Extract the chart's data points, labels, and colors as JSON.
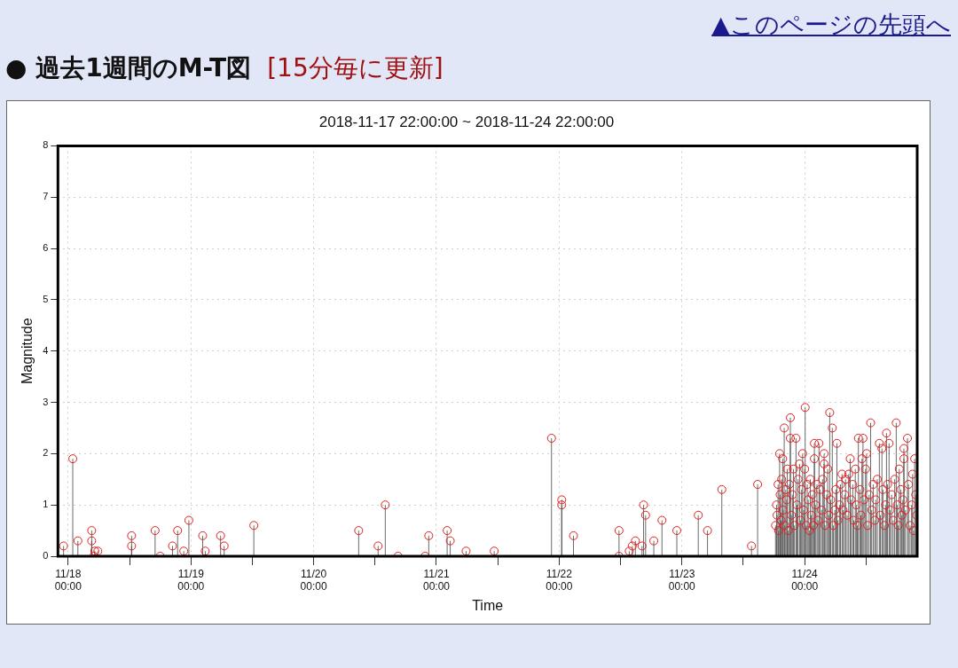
{
  "chart_data": {
    "type": "lollipop",
    "title": "● 過去1週間のM-T図",
    "subtitle": "[15分毎に更新]",
    "annotations": [
      "2018-11-17 22:00:00 ~ 2018-11-24 22:00:00",
      "▲このページの先頭へ"
    ],
    "xlabel": "Time",
    "ylabel": "Magnitude",
    "xlim": [
      "2018-11-17T22:00",
      "2018-11-24T22:00"
    ],
    "xticks": [
      {
        "value": "2018-11-18T00:00",
        "label": "11/18\n00:00"
      },
      {
        "value": "2018-11-18T12:00",
        "label": null
      },
      {
        "value": "2018-11-19T00:00",
        "label": "11/19\n00:00"
      },
      {
        "value": "2018-11-19T12:00",
        "label": null
      },
      {
        "value": "2018-11-20T00:00",
        "label": "11/20\n00:00"
      },
      {
        "value": "2018-11-20T12:00",
        "label": null
      },
      {
        "value": "2018-11-21T00:00",
        "label": "11/21\n00:00"
      },
      {
        "value": "2018-11-21T12:00",
        "label": null
      },
      {
        "value": "2018-11-22T00:00",
        "label": "11/22\n00:00"
      },
      {
        "value": "2018-11-22T12:00",
        "label": null
      },
      {
        "value": "2018-11-23T00:00",
        "label": "11/23\n00:00"
      },
      {
        "value": "2018-11-23T12:00",
        "label": null
      },
      {
        "value": "2018-11-24T00:00",
        "label": "11/24\n00:00"
      },
      {
        "value": "2018-11-24T12:00",
        "label": null
      }
    ],
    "ylim": [
      0,
      8
    ],
    "yticks": [
      0,
      1,
      2,
      3,
      4,
      5,
      6,
      7,
      8
    ],
    "grid": true,
    "marker": "circle",
    "legend": false,
    "series": [
      {
        "color": "#e02020",
        "x": [
          "2018-11-17T23:06",
          "2018-11-18T00:54",
          "2018-11-18T01:54",
          "2018-11-18T04:36",
          "2018-11-18T04:36",
          "2018-11-18T05:00",
          "2018-11-18T05:12",
          "2018-11-18T05:48",
          "2018-11-18T12:24",
          "2018-11-18T12:24",
          "2018-11-18T17:00",
          "2018-11-18T18:00",
          "2018-11-18T20:24",
          "2018-11-18T21:24",
          "2018-11-18T22:36",
          "2018-11-18T23:36",
          "2018-11-19T02:18",
          "2018-11-19T02:48",
          "2018-11-19T05:48",
          "2018-11-19T06:30",
          "2018-11-19T12:18",
          "2018-11-20T08:48",
          "2018-11-20T12:36",
          "2018-11-20T14:00",
          "2018-11-20T16:30",
          "2018-11-20T21:48",
          "2018-11-20T22:30",
          "2018-11-21T02:06",
          "2018-11-21T02:42",
          "2018-11-21T05:48",
          "2018-11-21T11:18",
          "2018-11-21T22:30",
          "2018-11-22T00:30",
          "2018-11-22T00:30",
          "2018-11-22T02:48",
          "2018-11-22T11:42",
          "2018-11-22T11:42",
          "2018-11-22T13:42",
          "2018-11-22T14:18",
          "2018-11-22T14:54",
          "2018-11-22T16:12",
          "2018-11-22T16:30",
          "2018-11-22T16:54",
          "2018-11-22T18:30",
          "2018-11-22T20:06",
          "2018-11-22T23:00",
          "2018-11-23T03:12",
          "2018-11-23T05:00",
          "2018-11-23T07:48",
          "2018-11-23T13:36",
          "2018-11-23T14:48",
          "2018-11-23T18:18",
          "2018-11-23T18:30",
          "2018-11-23T18:36",
          "2018-11-23T18:48",
          "2018-11-23T18:54",
          "2018-11-23T19:06",
          "2018-11-23T19:12",
          "2018-11-23T19:24",
          "2018-11-23T19:30",
          "2018-11-23T19:42",
          "2018-11-23T19:48",
          "2018-11-23T20:00",
          "2018-11-23T20:06",
          "2018-11-23T20:18",
          "2018-11-23T20:30",
          "2018-11-23T20:36",
          "2018-11-23T20:48",
          "2018-11-23T21:00",
          "2018-11-23T21:12",
          "2018-11-23T21:12",
          "2018-11-23T21:24",
          "2018-11-23T21:36",
          "2018-11-23T21:48",
          "2018-11-23T22:00",
          "2018-11-23T22:18",
          "2018-11-23T22:30",
          "2018-11-23T22:42",
          "2018-11-23T23:00",
          "2018-11-23T23:12",
          "2018-11-23T23:24",
          "2018-11-23T23:36",
          "2018-11-23T23:48",
          "2018-11-24T00:00",
          "2018-11-24T00:06",
          "2018-11-24T00:18",
          "2018-11-24T00:30",
          "2018-11-24T00:42",
          "2018-11-24T00:54",
          "2018-11-24T01:06",
          "2018-11-24T01:18",
          "2018-11-24T01:30",
          "2018-11-24T01:42",
          "2018-11-24T01:54",
          "2018-11-24T01:54",
          "2018-11-24T02:06",
          "2018-11-24T02:24",
          "2018-11-24T02:36",
          "2018-11-24T02:48",
          "2018-11-24T03:00",
          "2018-11-24T03:18",
          "2018-11-24T03:30",
          "2018-11-24T03:48",
          "2018-11-24T03:48",
          "2018-11-24T04:00",
          "2018-11-24T04:18",
          "2018-11-24T04:30",
          "2018-11-24T04:42",
          "2018-11-24T04:54",
          "2018-11-24T05:06",
          "2018-11-24T05:24",
          "2018-11-24T05:36",
          "2018-11-24T05:54",
          "2018-11-24T06:06",
          "2018-11-24T06:18",
          "2018-11-24T06:30",
          "2018-11-24T06:48",
          "2018-11-24T07:00",
          "2018-11-24T07:18",
          "2018-11-24T07:30",
          "2018-11-24T07:48",
          "2018-11-24T08:00",
          "2018-11-24T08:18",
          "2018-11-24T08:36",
          "2018-11-24T08:54",
          "2018-11-24T09:06",
          "2018-11-24T09:24",
          "2018-11-24T09:36",
          "2018-11-24T09:54",
          "2018-11-24T10:06",
          "2018-11-24T10:18",
          "2018-11-24T10:30",
          "2018-11-24T10:48",
          "2018-11-24T11:00",
          "2018-11-24T11:12",
          "2018-11-24T11:24",
          "2018-11-24T11:36",
          "2018-11-24T11:54",
          "2018-11-24T12:06",
          "2018-11-24T12:18",
          "2018-11-24T12:36",
          "2018-11-24T12:54",
          "2018-11-24T13:06",
          "2018-11-24T13:24",
          "2018-11-24T13:42",
          "2018-11-24T13:54",
          "2018-11-24T14:12",
          "2018-11-24T14:36",
          "2018-11-24T14:48",
          "2018-11-24T15:06",
          "2018-11-24T15:18",
          "2018-11-24T15:36",
          "2018-11-24T15:48",
          "2018-11-24T16:00",
          "2018-11-24T16:12",
          "2018-11-24T16:30",
          "2018-11-24T16:42",
          "2018-11-24T17:00",
          "2018-11-24T17:18",
          "2018-11-24T17:36",
          "2018-11-24T17:54",
          "2018-11-24T18:06",
          "2018-11-24T18:18",
          "2018-11-24T18:30",
          "2018-11-24T18:48",
          "2018-11-24T19:00",
          "2018-11-24T19:12",
          "2018-11-24T19:24",
          "2018-11-24T19:24",
          "2018-11-24T19:42",
          "2018-11-24T20:06",
          "2018-11-24T20:18",
          "2018-11-24T20:36",
          "2018-11-24T20:54",
          "2018-11-24T21:06",
          "2018-11-24T21:18",
          "2018-11-24T21:30",
          "2018-11-24T21:42",
          "2018-11-24T21:54"
        ],
        "values": [
          0.2,
          1.9,
          0.3,
          0.5,
          0.3,
          0.0,
          0.1,
          0.1,
          0.4,
          0.2,
          0.5,
          0.0,
          0.2,
          0.5,
          0.1,
          0.7,
          0.4,
          0.1,
          0.4,
          0.2,
          0.6,
          0.5,
          0.2,
          1.0,
          0.0,
          0.0,
          0.4,
          0.5,
          0.3,
          0.1,
          0.1,
          2.3,
          1.1,
          1.0,
          0.4,
          0.5,
          0.0,
          0.1,
          0.2,
          0.3,
          0.2,
          1.0,
          0.8,
          0.3,
          0.7,
          0.5,
          0.8,
          0.5,
          1.3,
          0.2,
          1.4,
          0.6,
          1.0,
          0.8,
          1.4,
          0.5,
          2.0,
          1.2,
          0.7,
          1.5,
          1.9,
          0.9,
          2.5,
          0.6,
          1.3,
          1.1,
          1.7,
          0.5,
          1.4,
          2.7,
          2.3,
          0.8,
          1.2,
          1.7,
          0.6,
          2.3,
          1.0,
          1.5,
          1.8,
          0.7,
          1.3,
          2.0,
          0.9,
          1.7,
          2.9,
          0.6,
          1.4,
          1.1,
          0.5,
          1.5,
          0.8,
          1.2,
          0.6,
          2.2,
          1.9,
          1.0,
          1.4,
          0.7,
          2.2,
          1.3,
          0.9,
          1.5,
          2.0,
          1.8,
          0.6,
          1.2,
          1.7,
          0.8,
          2.8,
          1.1,
          2.5,
          0.6,
          0.9,
          1.3,
          2.2,
          0.7,
          1.0,
          1.4,
          1.6,
          0.9,
          1.2,
          1.5,
          0.8,
          1.6,
          1.9,
          1.1,
          1.4,
          0.7,
          1.7,
          1.0,
          0.6,
          2.3,
          1.3,
          0.8,
          1.9,
          2.3,
          1.1,
          1.7,
          2.0,
          0.6,
          1.2,
          2.6,
          0.9,
          1.4,
          0.7,
          1.1,
          1.5,
          2.2,
          0.8,
          2.1,
          1.3,
          0.6,
          1.0,
          2.4,
          1.4,
          2.2,
          0.9,
          1.2,
          0.7,
          1.5,
          2.6,
          1.0,
          0.6,
          1.7,
          1.3,
          0.8,
          1.1,
          2.1,
          1.9,
          0.9,
          2.3,
          1.4,
          0.6,
          1.0,
          1.6,
          0.5,
          1.9,
          1.2,
          0.8
        ]
      }
    ]
  }
}
